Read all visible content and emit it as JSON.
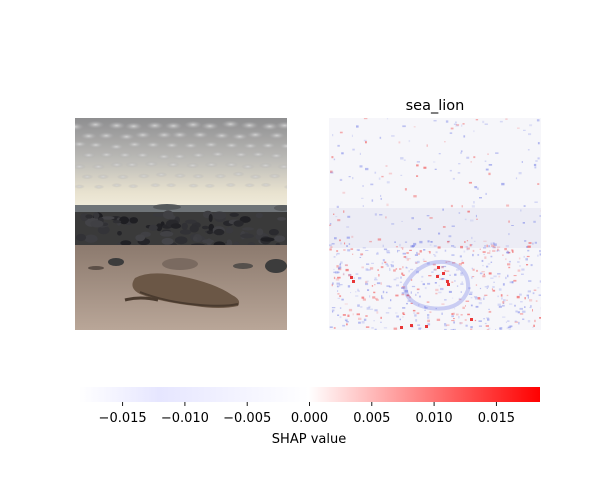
{
  "chart_data": {
    "type": "heatmap",
    "panels": [
      {
        "name": "input-image",
        "title": "",
        "content": "beach photo with sea lions under a cloudy sky"
      },
      {
        "name": "shap-map",
        "title": "sea_lion"
      }
    ],
    "colorbar": {
      "label": "SHAP value",
      "range": [
        -0.0185,
        0.0185
      ],
      "ticks": [
        -0.015,
        -0.01,
        -0.005,
        0.0,
        0.005,
        0.01,
        0.015
      ],
      "tick_labels": [
        "−0.015",
        "−0.010",
        "−0.005",
        "0.000",
        "0.005",
        "0.010",
        "0.015"
      ],
      "colors": {
        "negative": "#0000ff",
        "zero": "#ffffff",
        "positive": "#ff0000"
      }
    }
  }
}
